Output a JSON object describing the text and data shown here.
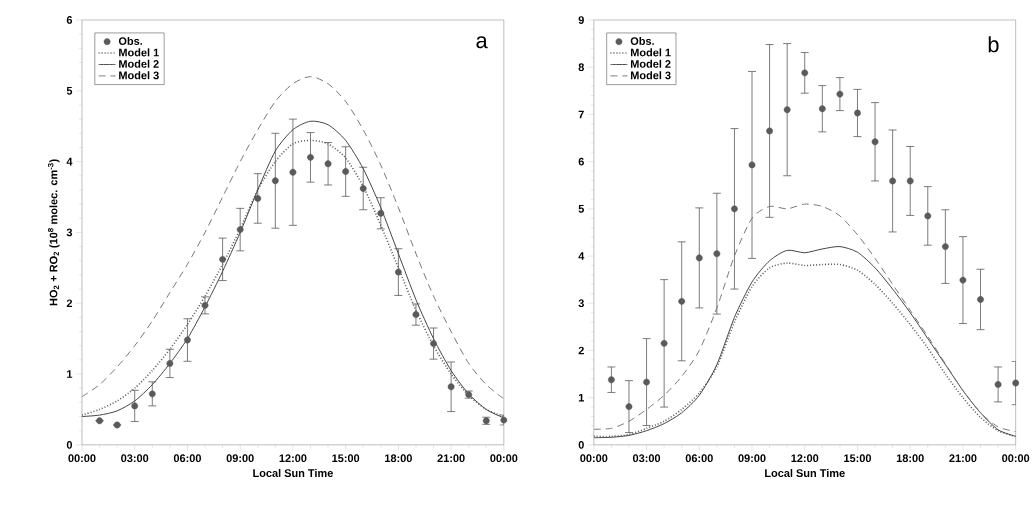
{
  "chart_data": [
    {
      "type": "line",
      "xlabel": "Local Sun Time",
      "ylabel": "HO$_{2}$ + RO$_{2}$ (10$^{8}$ molec. cm$^{-3}$)",
      "annotations": [
        "a"
      ],
      "legend": "top left",
      "xlim": [
        0,
        24
      ],
      "ylim": [
        0,
        6
      ],
      "xticks": [
        {
          "value": 0,
          "label": "00:00"
        },
        {
          "value": 3,
          "label": "03:00"
        },
        {
          "value": 6,
          "label": "06:00"
        },
        {
          "value": 9,
          "label": "09:00"
        },
        {
          "value": 12,
          "label": "12:00"
        },
        {
          "value": 15,
          "label": "15:00"
        },
        {
          "value": 18,
          "label": "18:00"
        },
        {
          "value": 21,
          "label": "21:00"
        },
        {
          "value": 24,
          "label": "00:00"
        }
      ],
      "yticks": [
        0,
        1,
        2,
        3,
        4,
        5,
        6
      ],
      "series": [
        {
          "name": "Obs.",
          "type": "scatter",
          "color": "#5a5a5a",
          "x": [
            1,
            2,
            3,
            4,
            5,
            6,
            7,
            8,
            9,
            10,
            11,
            12,
            13,
            14,
            15,
            16,
            17,
            18,
            19,
            20,
            21,
            22,
            23,
            24
          ],
          "values": [
            0.34,
            0.28,
            0.55,
            0.72,
            1.15,
            1.48,
            1.97,
            2.62,
            3.04,
            3.48,
            3.73,
            3.85,
            4.06,
            3.97,
            3.86,
            3.62,
            3.27,
            2.44,
            1.84,
            1.43,
            0.82,
            0.71,
            0.34,
            0.35
          ],
          "errors": [
            null,
            null,
            0.22,
            0.17,
            0.2,
            0.3,
            0.12,
            0.3,
            0.3,
            0.35,
            0.67,
            0.75,
            0.35,
            0.3,
            0.35,
            0.3,
            0.22,
            0.33,
            0.15,
            0.22,
            0.35,
            0.05,
            0.05,
            0.07
          ]
        },
        {
          "name": "Model 1",
          "line_style": "dotted",
          "color": "#555555",
          "x": [
            0,
            1,
            2,
            3,
            4,
            5,
            6,
            7,
            8,
            9,
            10,
            11,
            12,
            13,
            14,
            15,
            16,
            17,
            18,
            19,
            20,
            21,
            22,
            23,
            24
          ],
          "values": [
            0.42,
            0.5,
            0.62,
            0.8,
            1.05,
            1.35,
            1.7,
            2.1,
            2.55,
            3.05,
            3.6,
            4.0,
            4.25,
            4.3,
            4.25,
            4.05,
            3.65,
            3.1,
            2.5,
            1.9,
            1.4,
            1.0,
            0.7,
            0.5,
            0.4
          ]
        },
        {
          "name": "Model 2",
          "line_style": "solid",
          "color": "#444444",
          "x": [
            0,
            1,
            2,
            3,
            4,
            5,
            6,
            7,
            8,
            9,
            10,
            11,
            12,
            13,
            14,
            15,
            16,
            17,
            18,
            19,
            20,
            21,
            22,
            23,
            24
          ],
          "values": [
            0.4,
            0.42,
            0.48,
            0.62,
            0.85,
            1.15,
            1.5,
            1.95,
            2.45,
            3.0,
            3.6,
            4.15,
            4.45,
            4.57,
            4.52,
            4.3,
            3.9,
            3.35,
            2.7,
            2.05,
            1.5,
            1.05,
            0.72,
            0.5,
            0.38
          ]
        },
        {
          "name": "Model 3",
          "line_style": "dashed",
          "color": "#777777",
          "x": [
            0,
            1,
            2,
            3,
            4,
            5,
            6,
            7,
            8,
            9,
            10,
            11,
            12,
            13,
            14,
            15,
            16,
            17,
            18,
            19,
            20,
            21,
            22,
            23,
            24
          ],
          "values": [
            0.68,
            0.85,
            1.1,
            1.4,
            1.75,
            2.15,
            2.55,
            3.0,
            3.5,
            4.0,
            4.45,
            4.85,
            5.1,
            5.2,
            5.1,
            4.85,
            4.45,
            3.95,
            3.35,
            2.7,
            2.1,
            1.6,
            1.15,
            0.85,
            0.65
          ]
        }
      ]
    },
    {
      "type": "line",
      "xlabel": "Local Sun Time",
      "annotations": [
        "b"
      ],
      "legend": "top left",
      "xlim": [
        0,
        24
      ],
      "ylim": [
        0,
        9
      ],
      "xticks": [
        {
          "value": 0,
          "label": "00:00"
        },
        {
          "value": 3,
          "label": "03:00"
        },
        {
          "value": 6,
          "label": "06:00"
        },
        {
          "value": 9,
          "label": "09:00"
        },
        {
          "value": 12,
          "label": "12:00"
        },
        {
          "value": 15,
          "label": "15:00"
        },
        {
          "value": 18,
          "label": "18:00"
        },
        {
          "value": 21,
          "label": "21:00"
        },
        {
          "value": 24,
          "label": "00:00"
        }
      ],
      "yticks": [
        0,
        1,
        2,
        3,
        4,
        5,
        6,
        7,
        8,
        9
      ],
      "series": [
        {
          "name": "Obs.",
          "type": "scatter",
          "color": "#5a5a5a",
          "x": [
            1,
            2,
            3,
            4,
            5,
            6,
            7,
            8,
            9,
            10,
            11,
            12,
            13,
            14,
            15,
            16,
            17,
            18,
            19,
            20,
            21,
            22,
            23,
            24
          ],
          "values": [
            1.38,
            0.81,
            1.33,
            2.15,
            3.04,
            3.96,
            4.05,
            5.0,
            5.93,
            6.65,
            7.1,
            7.88,
            7.12,
            7.43,
            7.03,
            6.42,
            5.59,
            5.59,
            4.85,
            4.2,
            3.49,
            3.08,
            1.28,
            1.31
          ],
          "errors": [
            0.27,
            0.55,
            0.92,
            1.35,
            1.26,
            1.06,
            1.28,
            1.7,
            1.98,
            1.83,
            1.4,
            0.43,
            0.49,
            0.35,
            0.5,
            0.83,
            1.08,
            0.73,
            0.62,
            0.78,
            0.92,
            0.64,
            0.37,
            0.46
          ]
        },
        {
          "name": "Model 1",
          "line_style": "dotted",
          "color": "#555555",
          "x": [
            0,
            1,
            2,
            3,
            4,
            5,
            6,
            7,
            8,
            9,
            10,
            11,
            12,
            13,
            14,
            15,
            16,
            17,
            18,
            19,
            20,
            21,
            22,
            23,
            24
          ],
          "values": [
            0.18,
            0.18,
            0.22,
            0.35,
            0.5,
            0.75,
            1.1,
            1.65,
            2.6,
            3.35,
            3.75,
            3.85,
            3.8,
            3.82,
            3.82,
            3.7,
            3.4,
            3.0,
            2.55,
            2.05,
            1.5,
            1.0,
            0.58,
            0.3,
            0.18
          ]
        },
        {
          "name": "Model 2",
          "line_style": "solid",
          "color": "#444444",
          "x": [
            0,
            1,
            2,
            3,
            4,
            5,
            6,
            7,
            8,
            9,
            10,
            11,
            12,
            13,
            14,
            15,
            16,
            17,
            18,
            19,
            20,
            21,
            22,
            23,
            24
          ],
          "values": [
            0.15,
            0.16,
            0.2,
            0.3,
            0.45,
            0.68,
            1.05,
            1.7,
            2.7,
            3.45,
            3.9,
            4.12,
            4.07,
            4.15,
            4.2,
            4.08,
            3.75,
            3.3,
            2.8,
            2.25,
            1.7,
            1.15,
            0.68,
            0.32,
            0.18
          ]
        },
        {
          "name": "Model 3",
          "line_style": "dashed",
          "color": "#777777",
          "x": [
            0,
            1,
            2,
            3,
            4,
            5,
            6,
            7,
            8,
            9,
            10,
            11,
            12,
            13,
            14,
            15,
            16,
            17,
            18,
            19,
            20,
            21,
            22,
            23,
            24
          ],
          "values": [
            0.33,
            0.35,
            0.5,
            0.75,
            1.05,
            1.45,
            2.0,
            2.9,
            4.0,
            4.8,
            5.05,
            5.0,
            5.1,
            5.05,
            4.85,
            4.45,
            3.95,
            3.4,
            2.85,
            2.3,
            1.72,
            1.15,
            0.68,
            0.38,
            0.28
          ]
        }
      ]
    }
  ]
}
